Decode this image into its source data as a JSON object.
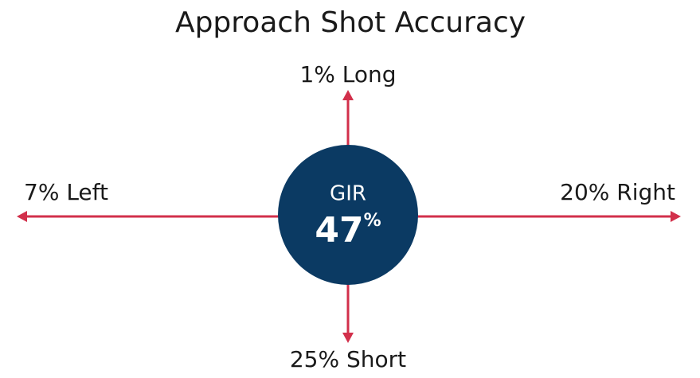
{
  "title": "Approach Shot Accuracy",
  "center": {
    "label": "GIR",
    "value": "47",
    "unit": "%"
  },
  "directions": {
    "long": "1% Long",
    "left": "7% Left",
    "right": "20% Right",
    "short": "25% Short"
  }
}
